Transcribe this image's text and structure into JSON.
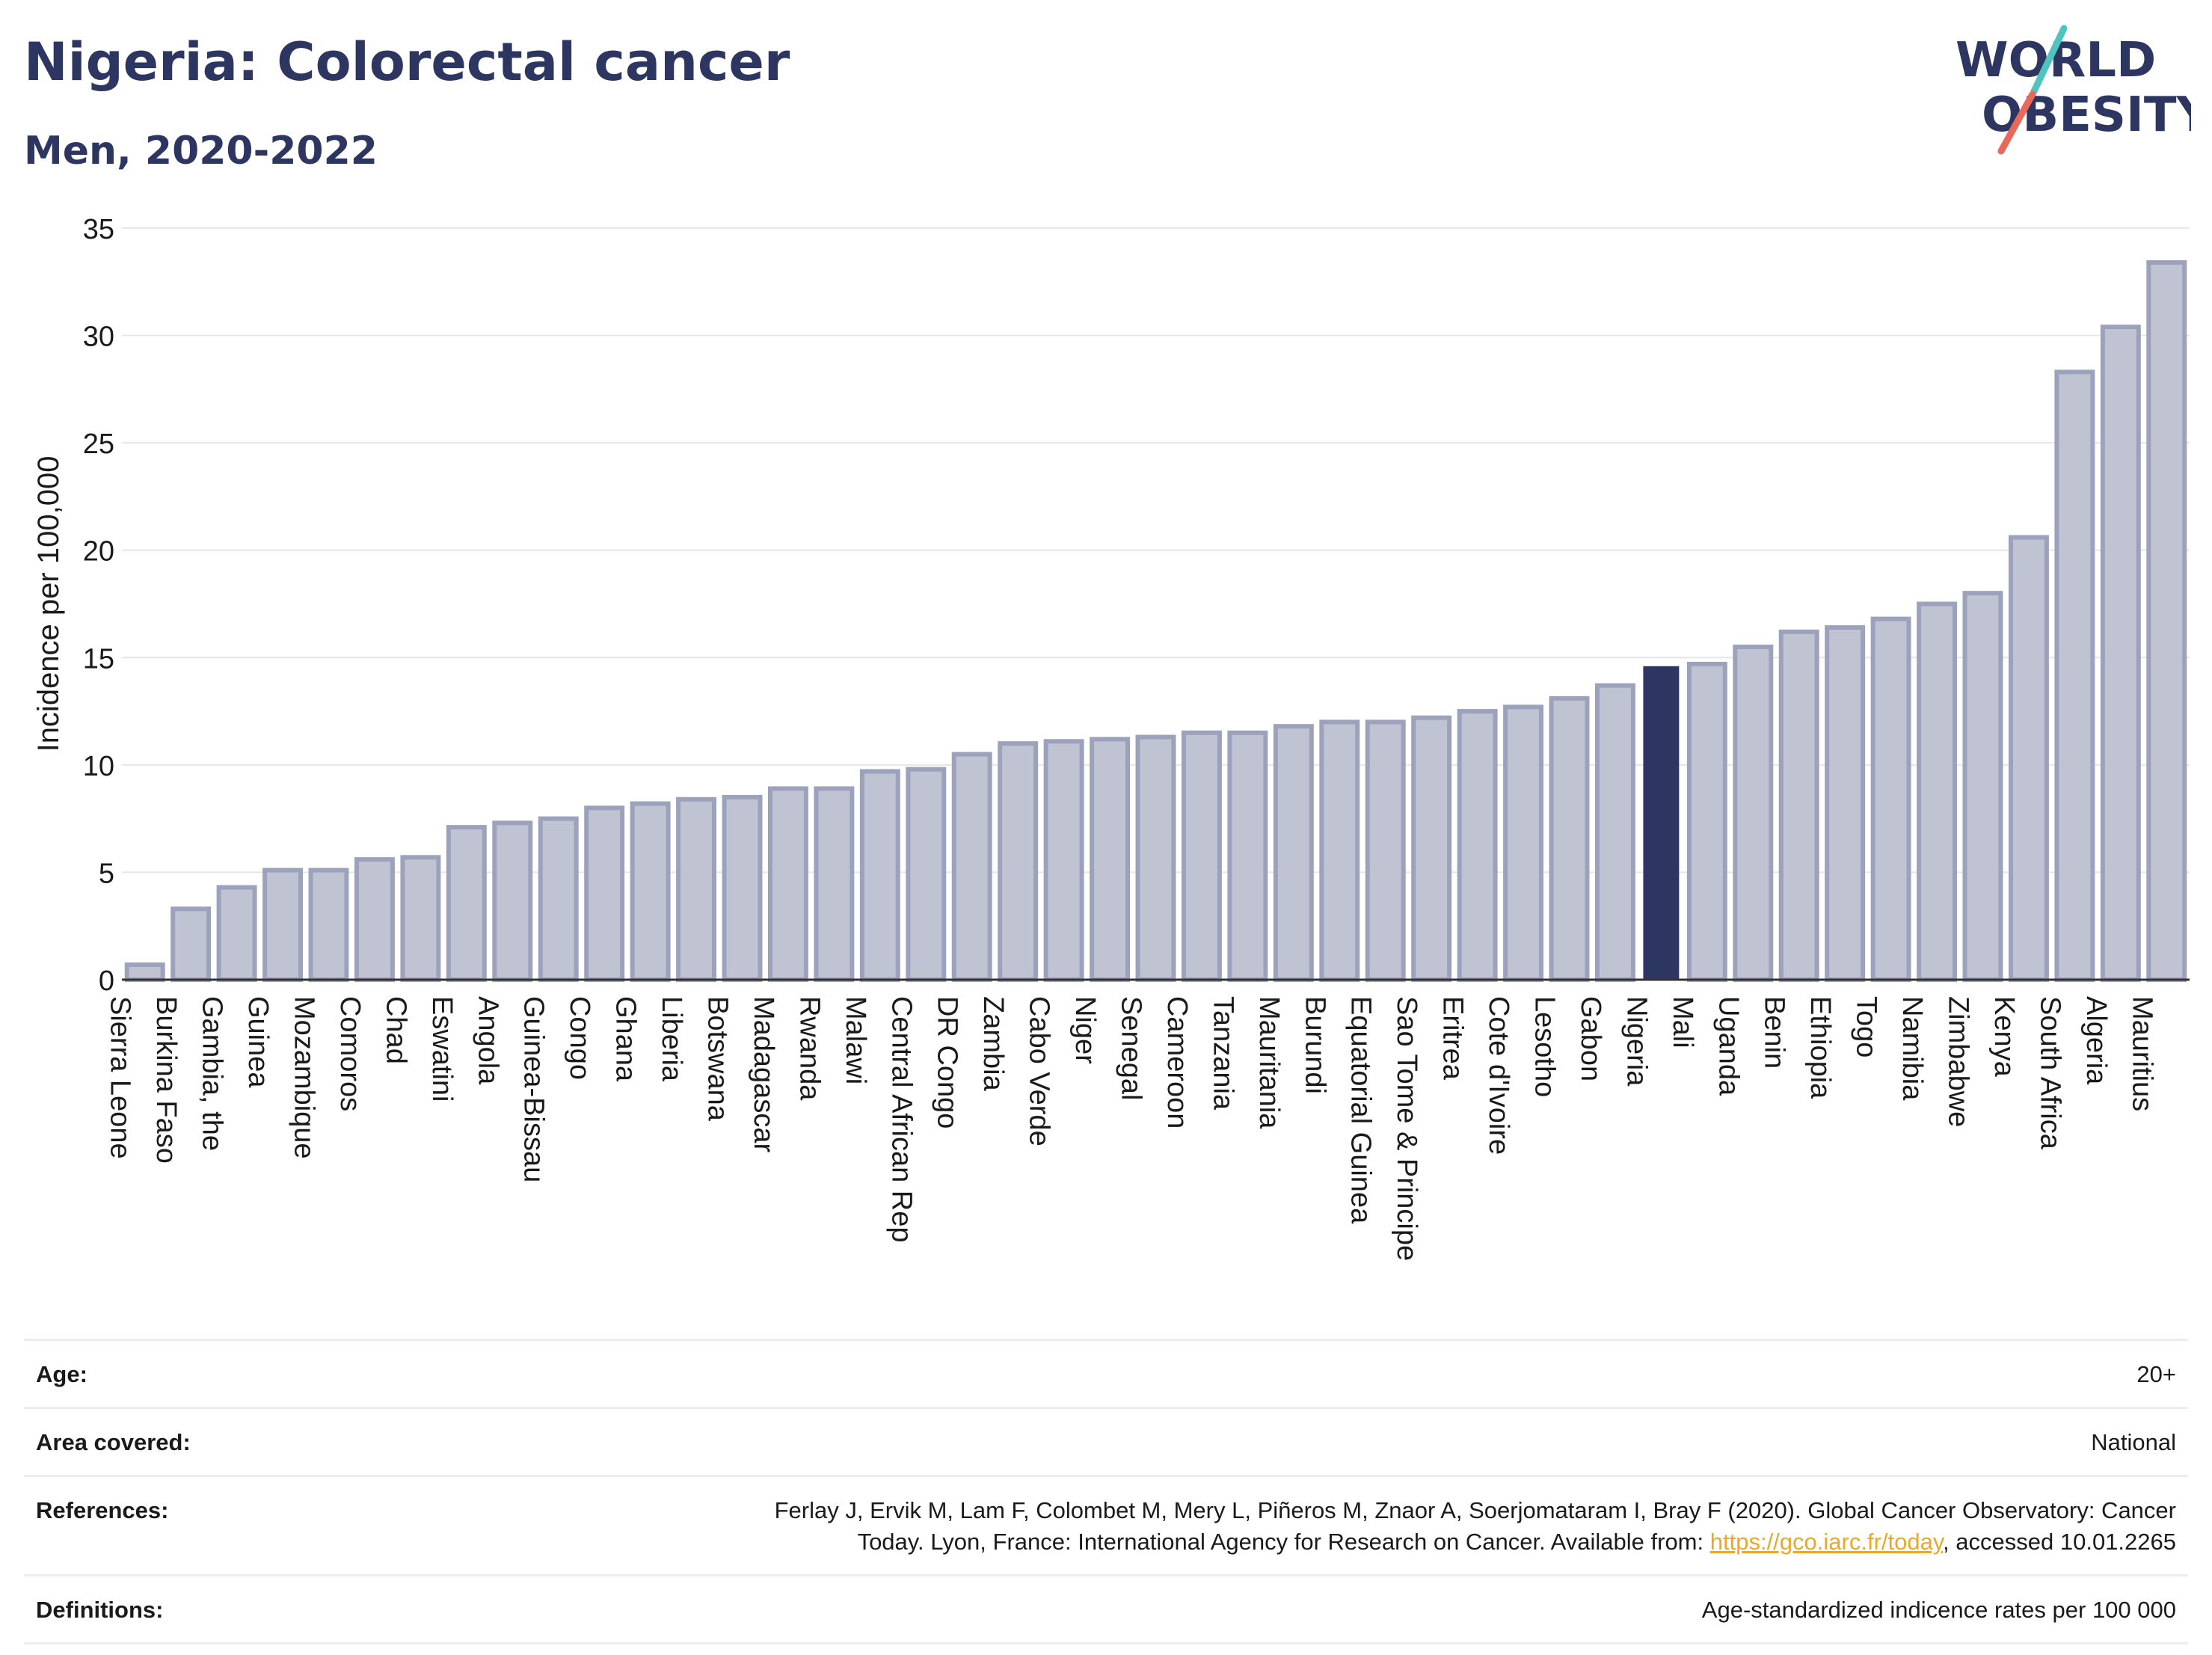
{
  "header": {
    "title": "Nigeria: Colorectal cancer",
    "subtitle": "Men, 2020-2022"
  },
  "logo": {
    "line1": "WORLD",
    "line2": "OBESITY",
    "text_color": "#2d3561",
    "slash_color_top": "#4fc3c0",
    "slash_color_bottom": "#e8685a"
  },
  "colors": {
    "bar_default": "#bfc3d2",
    "bar_default_stroke": "#9ca2bb",
    "bar_highlight": "#2d3561",
    "grid": "#e6e6e6",
    "axis": "#333333"
  },
  "chart_data": {
    "type": "bar",
    "title": "",
    "ylabel": "Incidence per 100,000",
    "xlabel": "",
    "ylim": [
      0,
      35
    ],
    "yticks": [
      0,
      5,
      10,
      15,
      20,
      25,
      30,
      35
    ],
    "grid": true,
    "highlight": "Nigeria",
    "categories": [
      "Sierra Leone",
      "Burkina Faso",
      "Gambia, the",
      "Guinea",
      "Mozambique",
      "Comoros",
      "Chad",
      "Eswatini",
      "Angola",
      "Guinea-Bissau",
      "Congo",
      "Ghana",
      "Liberia",
      "Botswana",
      "Madagascar",
      "Rwanda",
      "Malawi",
      "Central African Rep",
      "DR Congo",
      "Zambia",
      "Cabo Verde",
      "Niger",
      "Senegal",
      "Cameroon",
      "Tanzania",
      "Mauritania",
      "Burundi",
      "Equatorial Guinea",
      "Sao Tome & Principe",
      "Eritrea",
      "Cote d'Ivoire",
      "Lesotho",
      "Gabon",
      "Nigeria",
      "Mali",
      "Uganda",
      "Benin",
      "Ethiopia",
      "Togo",
      "Namibia",
      "Zimbabwe",
      "Kenya",
      "South Africa",
      "Algeria",
      "Mauritius"
    ],
    "values": [
      0.7,
      3.3,
      4.3,
      5.1,
      5.1,
      5.6,
      5.7,
      7.1,
      7.3,
      7.5,
      8.0,
      8.2,
      8.4,
      8.5,
      8.9,
      8.9,
      9.7,
      9.8,
      10.5,
      11.0,
      11.1,
      11.2,
      11.3,
      11.5,
      11.5,
      11.8,
      12.0,
      12.0,
      12.2,
      12.5,
      12.7,
      13.1,
      13.7,
      14.6,
      14.7,
      15.5,
      16.2,
      16.4,
      16.8,
      17.5,
      18.0,
      20.6,
      28.3,
      30.4,
      33.4
    ]
  },
  "info": {
    "age_label": "Age:",
    "age_value": "20+",
    "area_label": "Area covered:",
    "area_value": "National",
    "references_label": "References:",
    "references_line1": "Ferlay J, Ervik M, Lam F, Colombet M, Mery L, Piñeros M, Znaor A, Soerjomataram I, Bray F (2020). Global Cancer Observatory: Cancer",
    "references_line2_pre": "Today. Lyon, France: International Agency for Research on Cancer. Available from: ",
    "references_link": "https://gco.iarc.fr/today",
    "references_line2_post": ", accessed 10.01.2265",
    "definitions_label": "Definitions:",
    "definitions_value": "Age-standardized indicence rates per 100 000"
  }
}
